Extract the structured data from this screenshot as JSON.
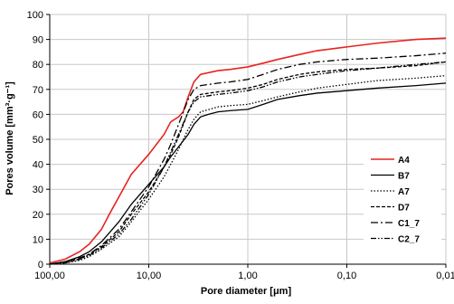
{
  "chart_data": {
    "type": "line",
    "xlabel": "Pore diameter [μm]",
    "ylabel": "Pores volume  [mm³·g⁻¹]",
    "x_scale": "log",
    "x_reversed": true,
    "xlim": [
      100,
      0.01
    ],
    "ylim": [
      0,
      100
    ],
    "x_ticks": [
      {
        "value": 100,
        "label": "100,00"
      },
      {
        "value": 10,
        "label": "10,00"
      },
      {
        "value": 1,
        "label": "1,00"
      },
      {
        "value": 0.1,
        "label": "0,10"
      },
      {
        "value": 0.01,
        "label": "0,01"
      }
    ],
    "y_ticks": [
      0,
      10,
      20,
      30,
      40,
      50,
      60,
      70,
      80,
      90,
      100
    ],
    "grid": true,
    "legend_position": "right",
    "series": [
      {
        "name": "A4",
        "color": "#e8231f",
        "dash": "solid",
        "x": [
          100,
          70,
          50,
          40,
          30,
          25,
          20,
          15,
          10,
          7,
          6,
          5,
          4.5,
          4,
          3.5,
          3,
          2,
          1.5,
          1,
          0.7,
          0.5,
          0.3,
          0.2,
          0.1,
          0.05,
          0.02,
          0.01
        ],
        "y": [
          0.5,
          2,
          5,
          8,
          14,
          20,
          27,
          36,
          44,
          52,
          57,
          59,
          61,
          67,
          73,
          76,
          77.5,
          78,
          79,
          80.5,
          82,
          84,
          85.5,
          87,
          88.5,
          90,
          90.5
        ]
      },
      {
        "name": "B7",
        "color": "#000000",
        "dash": "solid",
        "x": [
          100,
          70,
          50,
          40,
          30,
          20,
          15,
          10,
          7,
          6,
          5,
          4,
          3.5,
          3,
          2.5,
          2,
          1.5,
          1,
          0.7,
          0.5,
          0.3,
          0.2,
          0.1,
          0.05,
          0.02,
          0.01
        ],
        "y": [
          0,
          1,
          3,
          5,
          9,
          17,
          24,
          32,
          39,
          43,
          47,
          52,
          56,
          59,
          60,
          61,
          61.5,
          62,
          64,
          66,
          67.5,
          68.5,
          69.5,
          70.5,
          71.5,
          72.5
        ]
      },
      {
        "name": "A7",
        "color": "#000000",
        "dash": "dotted",
        "x": [
          100,
          70,
          50,
          40,
          30,
          20,
          15,
          10,
          7,
          6,
          5,
          4,
          3.5,
          3,
          2,
          1.5,
          1,
          0.7,
          0.5,
          0.3,
          0.2,
          0.1,
          0.05,
          0.02,
          0.01
        ],
        "y": [
          0,
          0.5,
          1.5,
          3,
          6,
          11,
          17,
          26,
          35,
          40,
          46,
          54,
          58,
          61,
          63,
          63.5,
          64,
          65.5,
          67,
          69,
          70.5,
          72,
          73.5,
          74.5,
          75.5
        ]
      },
      {
        "name": "D7",
        "color": "#000000",
        "dash": "dashed",
        "x": [
          100,
          70,
          50,
          40,
          30,
          20,
          15,
          10,
          7,
          6,
          5,
          4,
          3.5,
          3,
          2,
          1.5,
          1,
          0.7,
          0.5,
          0.3,
          0.2,
          0.1,
          0.05,
          0.02,
          0.01
        ],
        "y": [
          0,
          1,
          2,
          4,
          7,
          13,
          20,
          29,
          39,
          44,
          51,
          61,
          66,
          68,
          69,
          69.5,
          70.5,
          72,
          74,
          76,
          77,
          78,
          78.5,
          79.5,
          81
        ]
      },
      {
        "name": "C1_7",
        "color": "#000000",
        "dash": "dashdot",
        "x": [
          100,
          70,
          50,
          40,
          30,
          20,
          15,
          10,
          7,
          6,
          5,
          4,
          3.5,
          3,
          2,
          1.5,
          1,
          0.7,
          0.5,
          0.3,
          0.2,
          0.1,
          0.05,
          0.02,
          0.01
        ],
        "y": [
          0,
          1,
          2.5,
          4,
          7.5,
          14,
          21,
          31,
          42,
          48,
          56,
          66,
          70,
          71.5,
          72.5,
          73,
          74,
          76,
          78,
          80,
          81,
          82,
          82.5,
          83.5,
          84.5
        ]
      },
      {
        "name": "C2_7",
        "color": "#000000",
        "dash": "dashdotdot",
        "x": [
          100,
          70,
          50,
          40,
          30,
          20,
          15,
          10,
          7,
          6,
          5,
          4,
          3.5,
          3,
          2,
          1.5,
          1,
          0.7,
          0.5,
          0.3,
          0.2,
          0.1,
          0.05,
          0.02,
          0.01
        ],
        "y": [
          0,
          0.5,
          2,
          3.5,
          6.5,
          12,
          18,
          28,
          39,
          45,
          52,
          61,
          65,
          67,
          68,
          68.5,
          69.5,
          71,
          73,
          75,
          76,
          77.5,
          78.5,
          80,
          81
        ]
      }
    ]
  }
}
